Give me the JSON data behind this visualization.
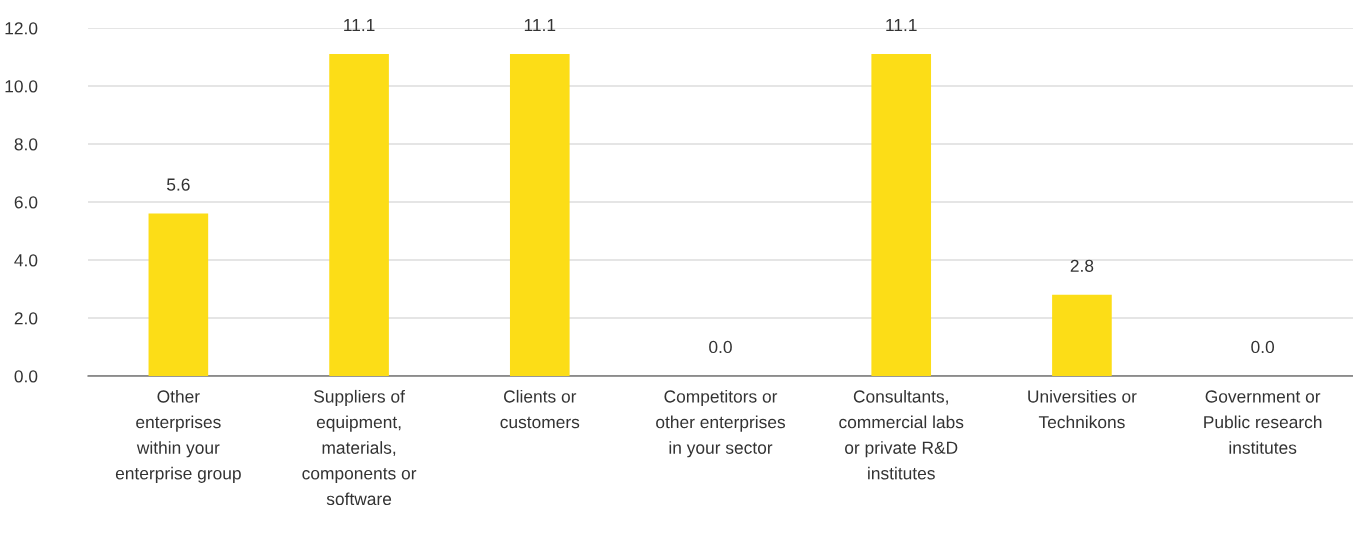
{
  "chart_data": {
    "type": "bar",
    "categories": [
      "Other\nenterprises\nwithin your\nenterprise group",
      "Suppliers of\nequipment,\nmaterials,\ncomponents or\nsoftware",
      "Clients or\ncustomers",
      "Competitors or\nother enterprises\nin your sector",
      "Consultants,\ncommercial labs\nor private R&D\ninstitutes",
      "Universities or\nTechnikons",
      "Government or\nPublic research\ninstitutes"
    ],
    "values": [
      5.6,
      11.1,
      11.1,
      0.0,
      11.1,
      2.8,
      0.0
    ],
    "color": "#fcdd17",
    "ylim": [
      0,
      12
    ],
    "yticks": [
      {
        "value": 0,
        "label": "0.0"
      },
      {
        "value": 2,
        "label": "2.0"
      },
      {
        "value": 4,
        "label": "4.0"
      },
      {
        "value": 6,
        "label": "6.0"
      },
      {
        "value": 8,
        "label": "8.0"
      },
      {
        "value": 10,
        "label": "10.0"
      },
      {
        "value": 12,
        "label": "12.0"
      }
    ],
    "grid": "y",
    "value_labels": [
      "5.6",
      "11.1",
      "11.1",
      "0.0",
      "11.1",
      "2.8",
      "0.0"
    ]
  }
}
